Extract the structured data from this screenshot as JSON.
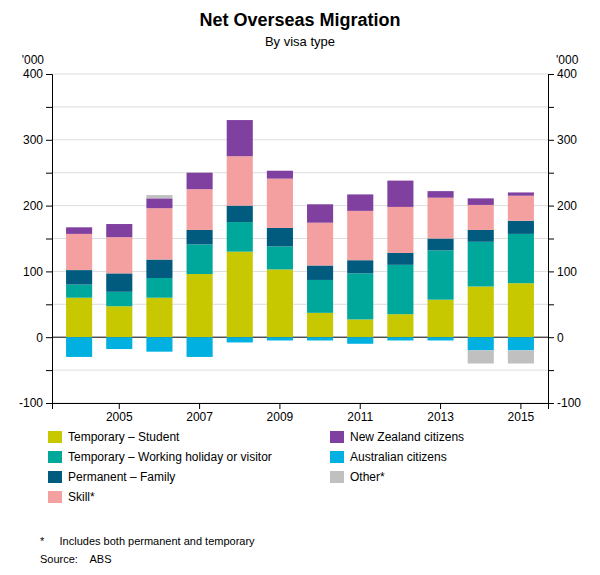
{
  "chart_data": {
    "type": "bar",
    "stacked": true,
    "title": "Net Overseas Migration",
    "subtitle": "By visa type",
    "ylabel": "'000",
    "y2label": "'000",
    "footnote": "*     Includes both permanent and temporary",
    "source": "Source:    ABS",
    "categories": [
      null,
      2005,
      null,
      2007,
      null,
      2009,
      null,
      2011,
      null,
      2013,
      null,
      2015
    ],
    "ylim": [
      -100,
      400
    ],
    "yticks": [
      -100,
      {
        "value": -50,
        "label": ""
      },
      0,
      {
        "value": 50,
        "label": ""
      },
      100,
      {
        "value": 150,
        "label": ""
      },
      200,
      {
        "value": 250,
        "label": ""
      },
      300,
      {
        "value": 350,
        "label": ""
      },
      400
    ],
    "y2lim": [
      -100,
      400
    ],
    "y2ticks": [
      -100,
      {
        "value": -50,
        "label": ""
      },
      0,
      {
        "value": 50,
        "label": ""
      },
      100,
      {
        "value": 150,
        "label": ""
      },
      200,
      {
        "value": 250,
        "label": ""
      },
      300,
      {
        "value": 350,
        "label": ""
      },
      400
    ],
    "grid": true,
    "legend": "bottom",
    "series": [
      {
        "name": "Temporary – Student",
        "color": "#c8c800",
        "values": [
          60,
          47,
          60,
          96,
          130,
          103,
          37,
          27,
          35,
          57,
          77,
          82
        ]
      },
      {
        "name": "Temporary – Working holiday or visitor",
        "color": "#00a89c",
        "values": [
          20,
          22,
          30,
          45,
          45,
          35,
          50,
          70,
          75,
          75,
          68,
          75
        ]
      },
      {
        "name": "Permanent – Family",
        "color": "#005b7f",
        "values": [
          22,
          28,
          28,
          22,
          25,
          28,
          22,
          20,
          18,
          18,
          18,
          20
        ]
      },
      {
        "name": "Skill*",
        "color": "#f4a0a0",
        "values": [
          55,
          55,
          78,
          62,
          75,
          75,
          65,
          75,
          70,
          62,
          38,
          38
        ]
      },
      {
        "name": "New Zealand citizens",
        "color": "#8040a0",
        "values": [
          10,
          20,
          15,
          25,
          55,
          12,
          28,
          25,
          40,
          10,
          10,
          5
        ]
      },
      {
        "name": "Australian citizens",
        "color": "#00b0e0",
        "values": [
          -30,
          -18,
          -22,
          -30,
          -8,
          -5,
          -5,
          -10,
          -5,
          -5,
          -20,
          -20
        ]
      },
      {
        "name": "Other*",
        "color": "#c0c0c0",
        "values": [
          0,
          0,
          5,
          0,
          0,
          0,
          0,
          0,
          0,
          0,
          -20,
          -20
        ]
      }
    ]
  }
}
